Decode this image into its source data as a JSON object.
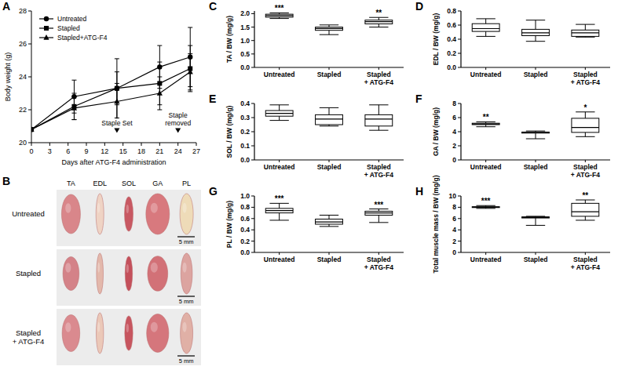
{
  "chart_data": [
    {
      "type": "line",
      "panel": "A",
      "x_label": "Days after ATG-F4 administration",
      "y_label": "Body weight (g)",
      "x": [
        0,
        7,
        14,
        21,
        26
      ],
      "series": [
        {
          "name": "Untreated",
          "color": "#000000",
          "marker": "circle",
          "values": [
            20.8,
            22.8,
            23.3,
            24.6,
            25.2
          ],
          "errors": [
            0,
            1.0,
            1.0,
            1.3,
            1.8
          ]
        },
        {
          "name": "Stapled",
          "color": "#000000",
          "marker": "square",
          "values": [
            20.8,
            22.2,
            23.3,
            23.6,
            24.5
          ],
          "errors": [
            0,
            0.8,
            1.8,
            1.3,
            1.4
          ]
        },
        {
          "name": "Stapled+ATG-F4",
          "color": "#000000",
          "marker": "triangle",
          "values": [
            20.8,
            22.1,
            22.5,
            23.0,
            24.3
          ],
          "errors": [
            0,
            0.7,
            1.1,
            1.0,
            1.1
          ]
        }
      ],
      "xlim": [
        0,
        27
      ],
      "xticks": [
        0,
        3,
        6,
        9,
        12,
        15,
        18,
        21,
        24,
        27
      ],
      "ylim": [
        20,
        28
      ],
      "yticks": [
        20,
        22,
        24,
        26,
        28
      ],
      "legend": "top-left",
      "grid": false,
      "annotations": [
        {
          "text": "Staple Set",
          "x": 14,
          "y": 20.6
        },
        {
          "text": "Staple removed",
          "x": 24,
          "y": 20.6
        }
      ]
    },
    {
      "type": "box",
      "panel": "C",
      "y_label": "TA / BW (mg/g)",
      "categories": [
        "Untreated",
        "Stapled",
        "Stapled + ATG-F4"
      ],
      "boxes": [
        {
          "min": 1.82,
          "q1": 1.87,
          "median": 1.93,
          "q3": 1.98,
          "max": 2.03,
          "label": "***"
        },
        {
          "min": 1.22,
          "q1": 1.38,
          "median": 1.45,
          "q3": 1.5,
          "max": 1.58
        },
        {
          "min": 1.5,
          "q1": 1.62,
          "median": 1.7,
          "q3": 1.76,
          "max": 1.86,
          "label": "**"
        }
      ],
      "ylim": [
        0,
        2.1
      ],
      "yticks": [
        {
          "value": 0,
          "label": "0.0"
        },
        {
          "value": 0.5,
          "label": "0.5"
        },
        {
          "value": 1,
          "label": "1.0"
        },
        {
          "value": 1.5,
          "label": "1.5"
        },
        {
          "value": 2,
          "label": "2.0"
        }
      ],
      "grid": false
    },
    {
      "type": "box",
      "panel": "D",
      "y_label": "EDL / BW (mg/g)",
      "categories": [
        "Untreated",
        "Stapled",
        "Stapled + ATG-F4"
      ],
      "boxes": [
        {
          "min": 0.44,
          "q1": 0.51,
          "median": 0.55,
          "q3": 0.62,
          "max": 0.69
        },
        {
          "min": 0.37,
          "q1": 0.45,
          "median": 0.49,
          "q3": 0.54,
          "max": 0.67
        },
        {
          "min": 0.43,
          "q1": 0.44,
          "median": 0.49,
          "q3": 0.53,
          "max": 0.61
        }
      ],
      "ylim": [
        0,
        0.8
      ],
      "yticks": [
        {
          "value": 0,
          "label": "0.0"
        },
        {
          "value": 0.2,
          "label": "0.2"
        },
        {
          "value": 0.4,
          "label": "0.4"
        },
        {
          "value": 0.6,
          "label": "0.6"
        },
        {
          "value": 0.8,
          "label": "0.8"
        }
      ],
      "grid": false
    },
    {
      "type": "box",
      "panel": "E",
      "y_label": "SOL / BW (mg/g)",
      "categories": [
        "Untreated",
        "Stapled",
        "Stapled + ATG-F4"
      ],
      "boxes": [
        {
          "min": 0.28,
          "q1": 0.31,
          "median": 0.33,
          "q3": 0.35,
          "max": 0.39
        },
        {
          "min": 0.24,
          "q1": 0.25,
          "median": 0.29,
          "q3": 0.32,
          "max": 0.37
        },
        {
          "min": 0.21,
          "q1": 0.24,
          "median": 0.29,
          "q3": 0.32,
          "max": 0.39
        }
      ],
      "ylim": [
        0,
        0.4
      ],
      "yticks": [
        {
          "value": 0,
          "label": "0.0"
        },
        {
          "value": 0.1,
          "label": "0.1"
        },
        {
          "value": 0.2,
          "label": "0.2"
        },
        {
          "value": 0.3,
          "label": "0.3"
        },
        {
          "value": 0.4,
          "label": "0.4"
        }
      ],
      "grid": false
    },
    {
      "type": "box",
      "panel": "F",
      "y_label": "GA / BW (mg/g)",
      "categories": [
        "Untreated",
        "Stapled",
        "Stapled + ATG-F4"
      ],
      "boxes": [
        {
          "min": 4.7,
          "q1": 5.0,
          "median": 5.1,
          "q3": 5.2,
          "max": 5.4,
          "label": "**"
        },
        {
          "min": 3.0,
          "q1": 3.8,
          "median": 3.9,
          "q3": 3.95,
          "max": 4.1
        },
        {
          "min": 3.3,
          "q1": 3.9,
          "median": 4.6,
          "q3": 5.9,
          "max": 6.8,
          "label": "*"
        }
      ],
      "ylim": [
        0,
        8
      ],
      "yticks": [
        0,
        2,
        4,
        6,
        8
      ],
      "grid": false
    },
    {
      "type": "box",
      "panel": "G",
      "y_label": "PL / BW (mg/g)",
      "categories": [
        "Untreated",
        "Stapled",
        "Stapled + ATG-F4"
      ],
      "boxes": [
        {
          "min": 0.57,
          "q1": 0.7,
          "median": 0.74,
          "q3": 0.78,
          "max": 0.87,
          "label": "***"
        },
        {
          "min": 0.46,
          "q1": 0.5,
          "median": 0.54,
          "q3": 0.59,
          "max": 0.66
        },
        {
          "min": 0.53,
          "q1": 0.66,
          "median": 0.7,
          "q3": 0.73,
          "max": 0.77,
          "label": "***"
        }
      ],
      "ylim": [
        0,
        1
      ],
      "yticks": [
        {
          "value": 0,
          "label": "0.0"
        },
        {
          "value": 0.2,
          "label": "0.2"
        },
        {
          "value": 0.4,
          "label": "0.4"
        },
        {
          "value": 0.6,
          "label": "0.6"
        },
        {
          "value": 0.8,
          "label": "0.8"
        },
        {
          "value": 1,
          "label": "1.0"
        }
      ],
      "grid": false
    },
    {
      "type": "box",
      "panel": "H",
      "y_label": "Total muscle mass / BW (mg/g)",
      "categories": [
        "Untreated",
        "Stapled",
        "Stapled + ATG-F4"
      ],
      "boxes": [
        {
          "min": 7.8,
          "q1": 7.95,
          "median": 8.0,
          "q3": 8.1,
          "max": 8.3,
          "label": "***"
        },
        {
          "min": 4.8,
          "q1": 6.1,
          "median": 6.2,
          "q3": 6.3,
          "max": 6.4
        },
        {
          "min": 5.7,
          "q1": 6.4,
          "median": 7.2,
          "q3": 8.7,
          "max": 9.3,
          "label": "**"
        }
      ],
      "ylim": [
        0,
        10
      ],
      "yticks": [
        0,
        2,
        4,
        6,
        8,
        10
      ],
      "grid": false
    }
  ],
  "photo_panel": {
    "panel": "B",
    "columns": [
      "TA",
      "EDL",
      "SOL",
      "GA",
      "PL"
    ],
    "rows": [
      "Untreated",
      "Stapled",
      "Stapled + ATG-F4"
    ],
    "scale_bar": "5 mm"
  }
}
